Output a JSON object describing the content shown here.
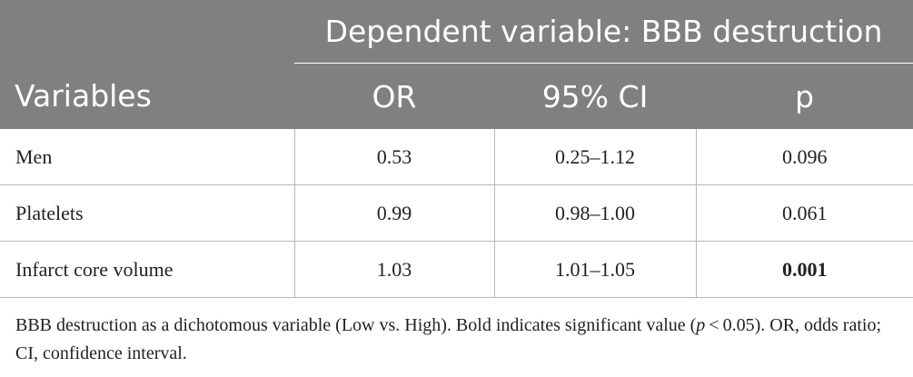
{
  "table": {
    "group_header": "Dependent variable: BBB destruction",
    "columns": [
      "Variables",
      "OR",
      "95% CI",
      "p"
    ],
    "rows": [
      {
        "variable": "Men",
        "or": "0.53",
        "ci": "0.25–1.12",
        "p": "0.096"
      },
      {
        "variable": "Platelets",
        "or": "0.99",
        "ci": "0.98–1.00",
        "p": "0.061"
      },
      {
        "variable": "Infarct core volume",
        "or": "1.03",
        "ci": "1.01–1.05",
        "p": "0.001"
      }
    ]
  },
  "footnote": {
    "text_before": "BBB destruction as a dichotomous variable (Low vs. High). Bold indicates significant value (",
    "p_symbol": "p",
    "text_after": " < 0.05). OR, odds ratio; CI, confidence interval."
  }
}
